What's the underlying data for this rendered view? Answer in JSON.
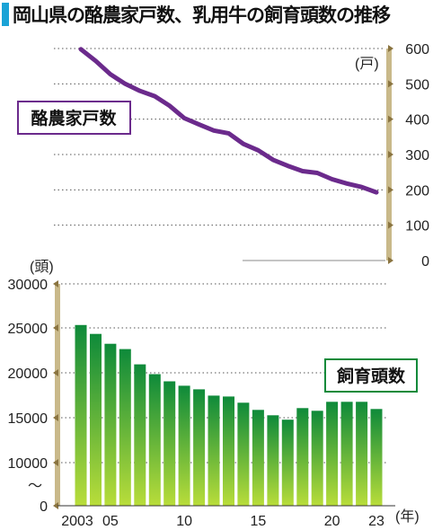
{
  "title": "岡山県の酪農家戸数、乳用牛の飼育頭数の推移",
  "colors": {
    "farm_line": "#6b2a8c",
    "bar_top": "#0e8a3a",
    "bar_bottom": "#b9dd3a",
    "axis_bar": "#c9b98a",
    "title_marker": "#1aa3d6",
    "grid": "#555555"
  },
  "chart_data": [
    {
      "type": "line",
      "name": "farm-households",
      "label": "酪農家戸数",
      "unit": "(戸)",
      "ylim": [
        0,
        600
      ],
      "yticks": [
        "0",
        "100",
        "200",
        "300",
        "400",
        "500",
        "600"
      ],
      "x": [
        2003,
        2004,
        2005,
        2006,
        2007,
        2008,
        2009,
        2010,
        2011,
        2012,
        2013,
        2014,
        2015,
        2016,
        2017,
        2018,
        2019,
        2020,
        2021,
        2022,
        2023
      ],
      "values": [
        598,
        565,
        527,
        500,
        480,
        465,
        438,
        403,
        385,
        368,
        360,
        330,
        312,
        285,
        268,
        253,
        248,
        230,
        218,
        208,
        193
      ],
      "grid": "dotted"
    },
    {
      "type": "bar",
      "name": "cattle-heads",
      "label": "飼育頭数",
      "unit": "(頭)",
      "ylim": [
        0,
        30000
      ],
      "axis_break": "〜",
      "yticks": [
        "0",
        "10000",
        "15000",
        "20000",
        "25000",
        "30000"
      ],
      "x": [
        2003,
        2004,
        2005,
        2006,
        2007,
        2008,
        2009,
        2010,
        2011,
        2012,
        2013,
        2014,
        2015,
        2016,
        2017,
        2018,
        2019,
        2020,
        2021,
        2022,
        2023
      ],
      "values": [
        25400,
        24400,
        23300,
        22700,
        21000,
        19900,
        19100,
        18600,
        18200,
        17500,
        17400,
        16700,
        15900,
        15300,
        14800,
        16100,
        15800,
        16800,
        16800,
        16800,
        16000
      ],
      "xtick_labels": [
        {
          "year": 2003,
          "text": "2003"
        },
        {
          "year": 2005,
          "text": "05"
        },
        {
          "year": 2010,
          "text": "10"
        },
        {
          "year": 2015,
          "text": "15"
        },
        {
          "year": 2020,
          "text": "20"
        },
        {
          "year": 2023,
          "text": "23"
        }
      ],
      "xunit": "(年)",
      "grid": "dotted"
    }
  ]
}
